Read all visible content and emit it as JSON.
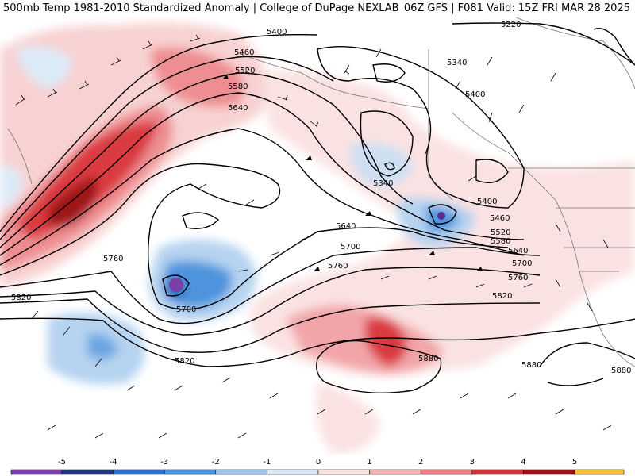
{
  "header": {
    "left": "500mb Temp 1981-2010 Standardized Anomaly | College of DuPage NEXLAB",
    "right": "06Z GFS | F081 Valid: 15Z FRI MAR 28 2025"
  },
  "legend": {
    "ticks": [
      "-5",
      "-4",
      "-3",
      "-2",
      "-1",
      "0",
      "1",
      "2",
      "3",
      "4",
      "5"
    ],
    "colors": [
      "#7b3fa8",
      "#203a78",
      "#2d6fc8",
      "#4d94dd",
      "#9cc4ec",
      "#d8e8f6",
      "#fbe0e0",
      "#f4b3b3",
      "#ec7f84",
      "#d43238",
      "#9b0f16",
      "#f4c430"
    ]
  },
  "contour_labels": [
    {
      "text": "5400"
    },
    {
      "text": "5460"
    },
    {
      "text": "5520"
    },
    {
      "text": "5580"
    },
    {
      "text": "5640"
    },
    {
      "text": "5220"
    },
    {
      "text": "5340"
    },
    {
      "text": "5400"
    },
    {
      "text": "5340"
    },
    {
      "text": "5400"
    },
    {
      "text": "5460"
    },
    {
      "text": "5520"
    },
    {
      "text": "5580"
    },
    {
      "text": "5640"
    },
    {
      "text": "5700"
    },
    {
      "text": "5760"
    },
    {
      "text": "5640"
    },
    {
      "text": "5700"
    },
    {
      "text": "5760"
    },
    {
      "text": "5760"
    },
    {
      "text": "5820"
    },
    {
      "text": "5700"
    },
    {
      "text": "5820"
    },
    {
      "text": "5820"
    },
    {
      "text": "5880"
    },
    {
      "text": "5880"
    },
    {
      "text": "5880"
    }
  ]
}
